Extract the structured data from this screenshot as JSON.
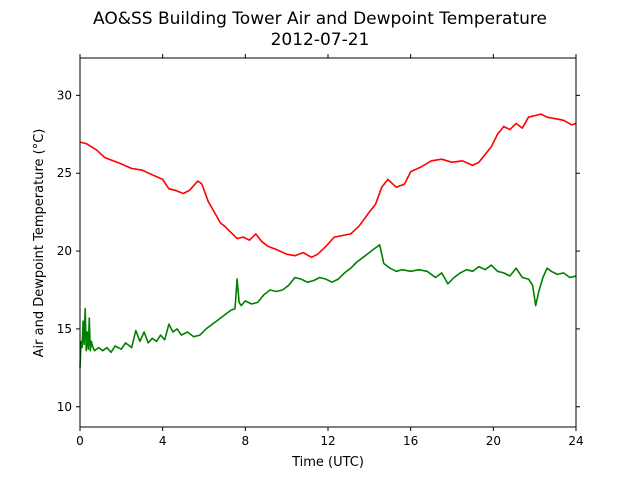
{
  "chart_data": {
    "type": "line",
    "title": "AO&SS Building Tower Air and Dewpoint Temperature",
    "subtitle": "2012-07-21",
    "xlabel": "Time (UTC)",
    "ylabel": "Air and Dewpoint Temperature (°C)",
    "xlim": [
      0,
      24
    ],
    "ylim": [
      8.7,
      32.4
    ],
    "xticks": [
      0,
      4,
      8,
      12,
      16,
      20,
      24
    ],
    "yticks": [
      10,
      15,
      20,
      25,
      30
    ],
    "grid": false,
    "legend": "none",
    "series": [
      {
        "color": "#ff0000",
        "x": [
          0,
          0.3,
          0.8,
          1.2,
          1.6,
          2.0,
          2.5,
          3.0,
          3.5,
          4.0,
          4.3,
          4.6,
          5.0,
          5.3,
          5.7,
          5.9,
          6.2,
          6.5,
          6.8,
          7.0,
          7.3,
          7.6,
          7.9,
          8.2,
          8.5,
          8.8,
          9.1,
          9.5,
          10.0,
          10.4,
          10.8,
          11.2,
          11.5,
          11.9,
          12.3,
          12.7,
          13.1,
          13.5,
          14.0,
          14.3,
          14.6,
          14.9,
          15.3,
          15.7,
          16.0,
          16.5,
          17.0,
          17.5,
          18.0,
          18.5,
          19.0,
          19.3,
          19.6,
          19.9,
          20.2,
          20.5,
          20.8,
          21.1,
          21.4,
          21.7,
          22.0,
          22.3,
          22.6,
          23.0,
          23.4,
          23.8,
          24.0
        ],
        "values": [
          27.0,
          26.9,
          26.5,
          26.0,
          25.8,
          25.6,
          25.3,
          25.2,
          24.9,
          24.6,
          24.0,
          23.9,
          23.7,
          23.9,
          24.5,
          24.3,
          23.2,
          22.5,
          21.8,
          21.6,
          21.2,
          20.8,
          20.9,
          20.7,
          21.1,
          20.6,
          20.3,
          20.1,
          19.8,
          19.7,
          19.9,
          19.6,
          19.8,
          20.3,
          20.9,
          21.0,
          21.1,
          21.6,
          22.5,
          23.0,
          24.1,
          24.6,
          24.1,
          24.3,
          25.1,
          25.4,
          25.8,
          25.9,
          25.7,
          25.8,
          25.5,
          25.7,
          26.2,
          26.7,
          27.5,
          28.0,
          27.8,
          28.2,
          27.9,
          28.6,
          28.7,
          28.8,
          28.6,
          28.5,
          28.4,
          28.1,
          28.2
        ]
      },
      {
        "color": "#008000",
        "x": [
          0,
          0.05,
          0.1,
          0.15,
          0.2,
          0.25,
          0.3,
          0.35,
          0.4,
          0.45,
          0.5,
          0.55,
          0.6,
          0.7,
          0.9,
          1.1,
          1.3,
          1.5,
          1.7,
          2.0,
          2.2,
          2.5,
          2.7,
          2.9,
          3.1,
          3.3,
          3.5,
          3.7,
          3.9,
          4.1,
          4.3,
          4.5,
          4.7,
          4.9,
          5.2,
          5.5,
          5.8,
          6.1,
          6.4,
          6.7,
          7.0,
          7.3,
          7.5,
          7.6,
          7.7,
          7.8,
          8.0,
          8.3,
          8.6,
          8.9,
          9.2,
          9.5,
          9.8,
          10.1,
          10.4,
          10.7,
          11.0,
          11.3,
          11.6,
          11.9,
          12.2,
          12.5,
          12.8,
          13.1,
          13.4,
          13.7,
          14.0,
          14.3,
          14.5,
          14.7,
          15.0,
          15.3,
          15.6,
          16.0,
          16.4,
          16.8,
          17.2,
          17.5,
          17.8,
          18.1,
          18.4,
          18.7,
          19.0,
          19.3,
          19.6,
          19.9,
          20.2,
          20.5,
          20.8,
          21.1,
          21.4,
          21.7,
          21.9,
          22.05,
          22.2,
          22.4,
          22.6,
          22.8,
          23.1,
          23.4,
          23.7,
          24.0
        ],
        "values": [
          12.5,
          14.2,
          13.8,
          15.5,
          14.0,
          16.3,
          13.6,
          14.8,
          13.7,
          15.7,
          13.6,
          14.2,
          13.9,
          13.6,
          13.8,
          13.6,
          13.8,
          13.5,
          13.9,
          13.7,
          14.1,
          13.8,
          14.9,
          14.2,
          14.8,
          14.1,
          14.4,
          14.2,
          14.6,
          14.3,
          15.3,
          14.8,
          15.0,
          14.6,
          14.8,
          14.5,
          14.6,
          15.0,
          15.3,
          15.6,
          15.9,
          16.2,
          16.3,
          18.2,
          16.7,
          16.5,
          16.8,
          16.6,
          16.7,
          17.2,
          17.5,
          17.4,
          17.5,
          17.8,
          18.3,
          18.2,
          18.0,
          18.1,
          18.3,
          18.2,
          18.0,
          18.2,
          18.6,
          18.9,
          19.3,
          19.6,
          19.9,
          20.2,
          20.4,
          19.2,
          18.9,
          18.7,
          18.8,
          18.7,
          18.8,
          18.7,
          18.3,
          18.6,
          17.9,
          18.3,
          18.6,
          18.8,
          18.7,
          19.0,
          18.8,
          19.1,
          18.7,
          18.6,
          18.4,
          18.9,
          18.3,
          18.2,
          17.8,
          16.5,
          17.4,
          18.3,
          18.9,
          18.7,
          18.5,
          18.6,
          18.3,
          18.4
        ]
      }
    ]
  }
}
